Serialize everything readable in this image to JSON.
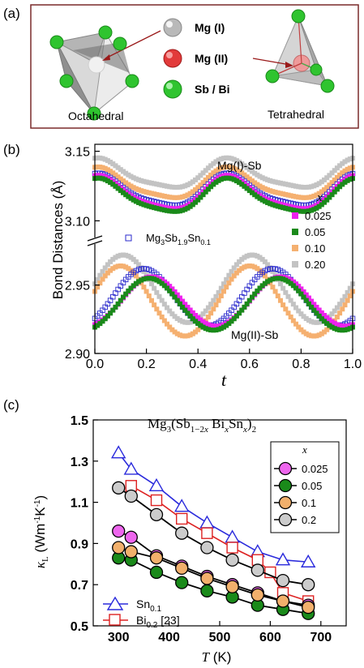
{
  "panel_a": {
    "label": "(a)",
    "legend": [
      {
        "name": "Mg (I)",
        "color": "#b9b9b9"
      },
      {
        "name": "Mg (II)",
        "color": "#e23a3a"
      },
      {
        "name": "Sb / Bi",
        "color": "#2fc42f"
      }
    ],
    "left_caption": "Octahedral",
    "right_caption": "Tetrahedral",
    "frame_color": "#7a2a2a"
  },
  "chart_data": [
    {
      "panel": "(b)",
      "type": "scatter",
      "xlabel": "t",
      "ylabel": "Bond Distances (Å)",
      "xlim": [
        0.0,
        1.0
      ],
      "ylim_upper": [
        3.088,
        3.155
      ],
      "ylim_lower": [
        2.9,
        2.98
      ],
      "axis_break": true,
      "x_ticks": [
        "0.0",
        "0.2",
        "0.4",
        "0.6",
        "0.8",
        "1.0"
      ],
      "y_ticks_upper": [
        "3.15",
        "3.10"
      ],
      "y_ticks_lower": [
        "2.95",
        "2.90"
      ],
      "annotations": [
        "Mg(I)-Sb",
        "Mg(II)-Sb"
      ],
      "legend_title": "x",
      "open_marker_label": {
        "base": "Mg",
        "sub1": "3",
        "mid1": "Sb",
        "sub2": "1.9",
        "mid2": "Sn",
        "sub3": "0.1"
      },
      "series": [
        {
          "name": "0.025",
          "color": "#ee22ee"
        },
        {
          "name": "0.05",
          "color": "#1a8a1a"
        },
        {
          "name": "0.10",
          "color": "#f5b070"
        },
        {
          "name": "0.20",
          "color": "#c3c3c3"
        }
      ],
      "open_series_color": "#2a2acc",
      "curves": {
        "upper": {
          "0.025": {
            "mean": 3.119,
            "amp": 0.0115,
            "phase": 0.0,
            "a2": 0.0025
          },
          "0.05": {
            "mean": 3.117,
            "amp": 0.0115,
            "phase": 0.0,
            "a2": 0.0025
          },
          "0.10": {
            "mean": 3.126,
            "amp": 0.0105,
            "phase": 0.0,
            "a2": 0.0025
          },
          "0.20": {
            "mean": 3.133,
            "amp": 0.01,
            "phase": 0.0,
            "a2": 0.0025
          },
          "Sn0.1": {
            "mean": 3.121,
            "amp": 0.011,
            "phase": 0.0,
            "a2": 0.0025
          }
        },
        "lower": {
          "0.025": {
            "mean": 2.937,
            "amp": 0.019,
            "peak": 0.22
          },
          "0.05": {
            "mean": 2.935,
            "amp": 0.02,
            "peak": 0.21
          },
          "0.10": {
            "mean": 2.937,
            "amp": 0.027,
            "peak": 0.1
          },
          "0.20": {
            "mean": 2.946,
            "amp": 0.026,
            "peak": 0.11
          },
          "Sn0.1": {
            "mean": 2.94,
            "amp": 0.022,
            "peak": 0.19
          }
        }
      }
    },
    {
      "panel": "(c)",
      "type": "line",
      "title": {
        "a": "Mg",
        "a_sub": "3",
        "b": "(Sb",
        "b_sub": "1−2",
        "b_sub_x": "x",
        "c": " Bi",
        "c_sub": "x",
        "d": "Sn",
        "d_sub": "x",
        "e": ")",
        "e_sub": "2"
      },
      "xlabel": "T (K)",
      "xlabel_unit": " (K)",
      "ylabel_symbol": "κ",
      "ylabel_sub": "L",
      "ylabel_unit": " (Wm",
      "ylabel_unit_sup1": "-1",
      "ylabel_unit_mid": "K",
      "ylabel_unit_sup2": "-1",
      "ylabel_unit_end": ")",
      "xlim": [
        250,
        750
      ],
      "ylim": [
        0.5,
        1.5
      ],
      "x_ticks": [
        "300",
        "400",
        "500",
        "600",
        "700"
      ],
      "y_ticks": [
        "0.5",
        "0.7",
        "0.9",
        "1.1",
        "1.3",
        "1.5"
      ],
      "legend_title": "x",
      "x": [
        300,
        325,
        375,
        425,
        475,
        525,
        575,
        625,
        675
      ],
      "series": [
        {
          "name": "0.025",
          "color": "#ee66ee",
          "marker": "circle",
          "values": [
            0.96,
            0.93,
            0.84,
            0.79,
            0.74,
            0.7,
            0.66,
            0.62,
            0.6
          ]
        },
        {
          "name": "0.05",
          "color": "#1a8a1a",
          "marker": "circle",
          "values": [
            0.83,
            0.82,
            0.76,
            0.71,
            0.67,
            0.64,
            0.6,
            0.58,
            0.56
          ]
        },
        {
          "name": "0.1",
          "color": "#f2b06c",
          "marker": "circle",
          "values": [
            0.88,
            0.86,
            0.83,
            0.78,
            0.73,
            0.69,
            0.65,
            0.62,
            0.59
          ]
        },
        {
          "name": "0.2",
          "color": "#cccccc",
          "marker": "circle",
          "values": [
            1.17,
            1.13,
            1.04,
            0.95,
            0.88,
            0.82,
            0.77,
            0.72,
            0.7
          ]
        }
      ],
      "extra_series": [
        {
          "name": "Sn",
          "sub": "0.1",
          "suffix": "",
          "color": "#2a2adc",
          "marker": "triangle",
          "values": [
            1.34,
            1.26,
            1.18,
            1.08,
            1.0,
            0.93,
            0.86,
            0.82,
            0.81
          ]
        },
        {
          "name": "Bi",
          "sub": "0.2",
          "suffix": " [23]",
          "color": "#dd2222",
          "marker": "square",
          "x": [
            325,
            375,
            425,
            475,
            525,
            575,
            600,
            625,
            675
          ],
          "values": [
            1.18,
            1.11,
            1.02,
            0.95,
            0.88,
            0.82,
            0.76,
            0.66,
            0.62
          ]
        }
      ]
    }
  ]
}
